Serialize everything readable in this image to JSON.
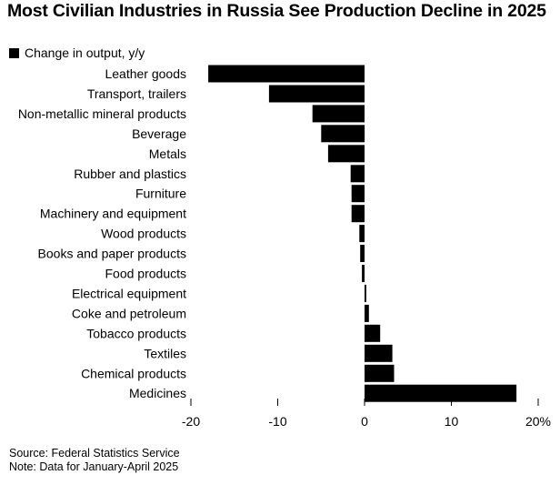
{
  "title": "Most Civilian Industries in Russia See Production Decline in 2025",
  "legend": {
    "label": "Change in output, y/y",
    "color": "#000000"
  },
  "footer": {
    "source": "Source: Federal Statistics Service",
    "note": "Note: Data for January-April 2025"
  },
  "chart_data": {
    "type": "bar",
    "orientation": "horizontal",
    "categories": [
      "Leather goods",
      "Transport, trailers",
      "Non-metallic mineral products",
      "Beverage",
      "Metals",
      "Rubber and plastics",
      "Furniture",
      "Machinery and equipment",
      "Wood products",
      "Books and paper products",
      "Food products",
      "Electrical equipment",
      "Coke and petroleum",
      "Tobacco products",
      "Textiles",
      "Chemical products",
      "Medicines"
    ],
    "series": [
      {
        "name": "Change in output, y/y",
        "values": [
          -18.0,
          -11.0,
          -6.0,
          -5.0,
          -4.2,
          -1.6,
          -1.5,
          -1.5,
          -0.6,
          -0.5,
          -0.3,
          0.2,
          0.5,
          1.8,
          3.2,
          3.4,
          17.5
        ],
        "color": "#000000"
      }
    ],
    "xlim": [
      -20,
      20
    ],
    "ticks": [
      -20,
      -10,
      0,
      10,
      20
    ],
    "tick_labels": [
      "-20",
      "-10",
      "0",
      "10",
      "20%"
    ],
    "grid": false,
    "legend_position": "top-left"
  }
}
